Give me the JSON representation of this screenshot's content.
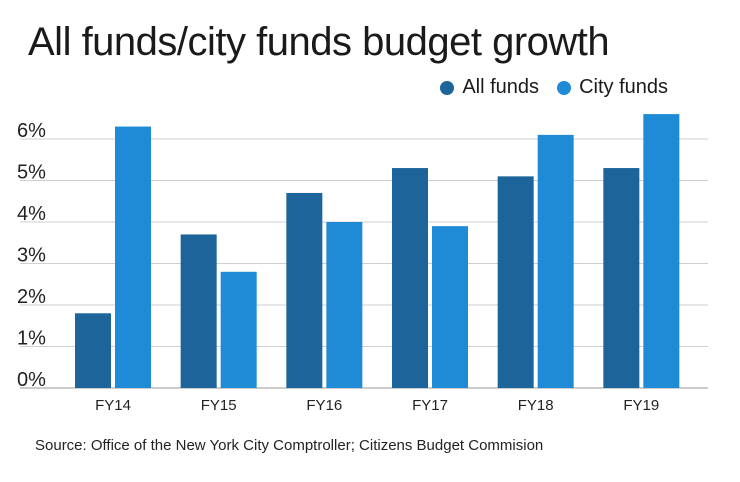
{
  "chart_data": {
    "type": "bar",
    "title": "All funds/city funds budget growth",
    "categories": [
      "FY14",
      "FY15",
      "FY16",
      "FY17",
      "FY18",
      "FY19"
    ],
    "series": [
      {
        "name": "All funds",
        "values": [
          1.8,
          3.7,
          4.7,
          5.3,
          5.1,
          5.3
        ],
        "color": "#1c6499"
      },
      {
        "name": "City funds",
        "values": [
          6.3,
          2.8,
          4.0,
          3.9,
          6.1,
          6.6
        ],
        "color": "#1f8bd6"
      }
    ],
    "yticks": [
      "0%",
      "1%",
      "2%",
      "3%",
      "4%",
      "5%",
      "6%"
    ],
    "ylim": [
      0,
      6.9
    ],
    "xlabel": "",
    "ylabel": "",
    "grid": true,
    "legend": "top-right"
  },
  "source": "Source: Office of the New York City Comptroller; Citizens Budget Commision"
}
